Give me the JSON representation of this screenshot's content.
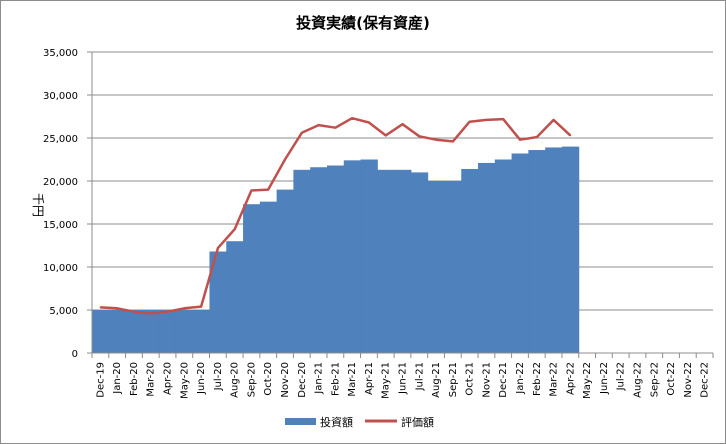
{
  "chart_data": {
    "type": "bar",
    "title": "投資実績(保有資産)",
    "ylabel": "千円",
    "xlabel": "",
    "ylim": [
      0,
      35000
    ],
    "y_ticks": [
      "0",
      "5,000",
      "10,000",
      "15,000",
      "20,000",
      "25,000",
      "30,000",
      "35,000"
    ],
    "y_tick_values": [
      0,
      5000,
      10000,
      15000,
      20000,
      25000,
      30000,
      35000
    ],
    "grid": true,
    "legend_position": "bottom",
    "categories": [
      "Dec-19",
      "Jan-20",
      "Feb-20",
      "Mar-20",
      "Apr-20",
      "May-20",
      "Jun-20",
      "Jul-20",
      "Aug-20",
      "Sep-20",
      "Oct-20",
      "Nov-20",
      "Dec-20",
      "Jan-21",
      "Feb-21",
      "Mar-21",
      "Apr-21",
      "May-21",
      "Jun-21",
      "Jul-21",
      "Aug-21",
      "Sep-21",
      "Oct-21",
      "Nov-21",
      "Dec-21",
      "Jan-22",
      "Feb-22",
      "Mar-22",
      "Apr-22",
      "May-22",
      "Jun-22",
      "Jul-22",
      "Aug-22",
      "Sep-22",
      "Oct-22",
      "Nov-22",
      "Dec-22"
    ],
    "series": [
      {
        "name": "投資額",
        "kind": "bar",
        "color": "#4f81bd",
        "values": [
          5000,
          5000,
          5000,
          5000,
          5000,
          5000,
          5000,
          11800,
          13000,
          17300,
          17600,
          19000,
          21300,
          21600,
          21800,
          22400,
          22500,
          21300,
          21300,
          21000,
          20000,
          20000,
          21400,
          22100,
          22500,
          23200,
          23600,
          23900,
          24000,
          null,
          null,
          null,
          null,
          null,
          null,
          null,
          null
        ]
      },
      {
        "name": "評価額",
        "kind": "line",
        "color": "#c0504d",
        "values": [
          5300,
          5200,
          4800,
          4600,
          4800,
          5200,
          5400,
          12200,
          14400,
          18900,
          19000,
          22500,
          25600,
          26500,
          26200,
          27300,
          26800,
          25300,
          26600,
          25200,
          24800,
          24600,
          26900,
          27100,
          27200,
          24800,
          25100,
          27100,
          25300,
          null,
          null,
          null,
          null,
          null,
          null,
          null,
          null
        ]
      }
    ]
  }
}
